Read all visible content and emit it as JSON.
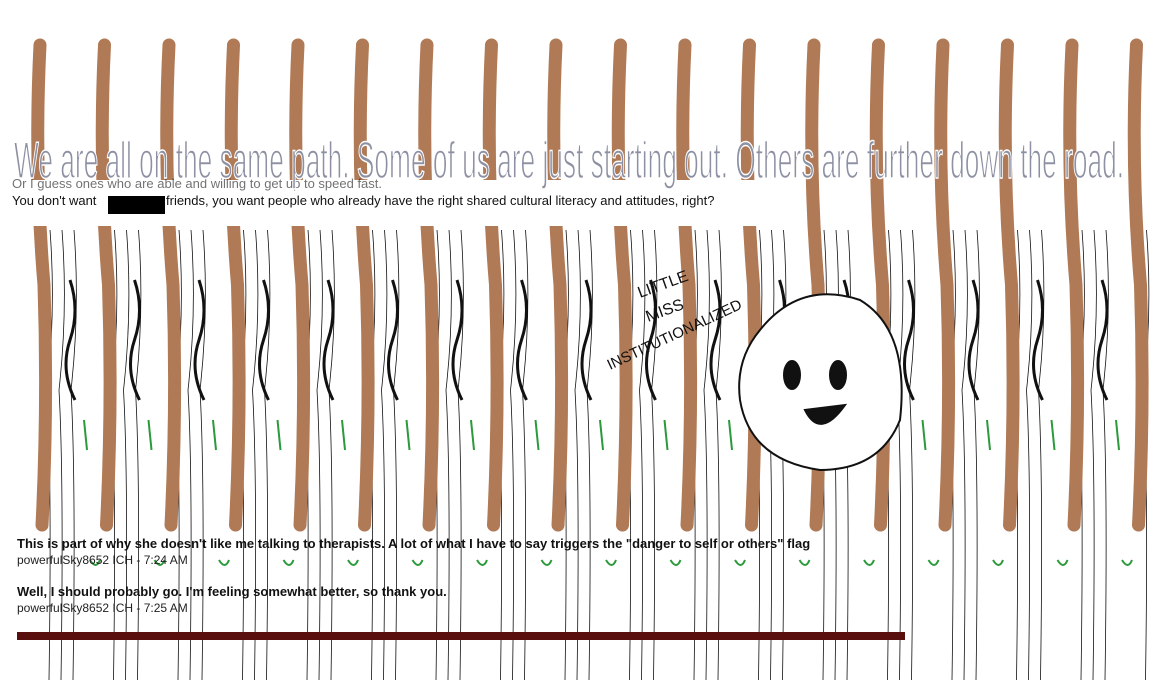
{
  "overlay_quote": "We are all on the same path. Some of us are just starting out. Others are further down the road.",
  "chat": {
    "upper": [
      {
        "text": "Or I guess ones who are able and willing to get up to speed fast."
      },
      {
        "text_before": "You don't want",
        "text_after": "friends, you want people who already have the right shared cultural literacy and attitudes, right?"
      }
    ],
    "lower": [
      {
        "text": "This is part of why she doesn't like me talking to therapists. A lot of what I have to say triggers the \"danger to self or others\" flag",
        "meta": "powerfulSky8652 ICH - 7:24 AM"
      },
      {
        "text": "Well, I should probably go. I'm feeling somewhat better, so thank you.",
        "meta": "powerfulSky8652 ICH - 7:25 AM"
      }
    ]
  },
  "drawing_caption": [
    "LITTLE",
    "MISS",
    "INSTITUTIONALIZED"
  ]
}
